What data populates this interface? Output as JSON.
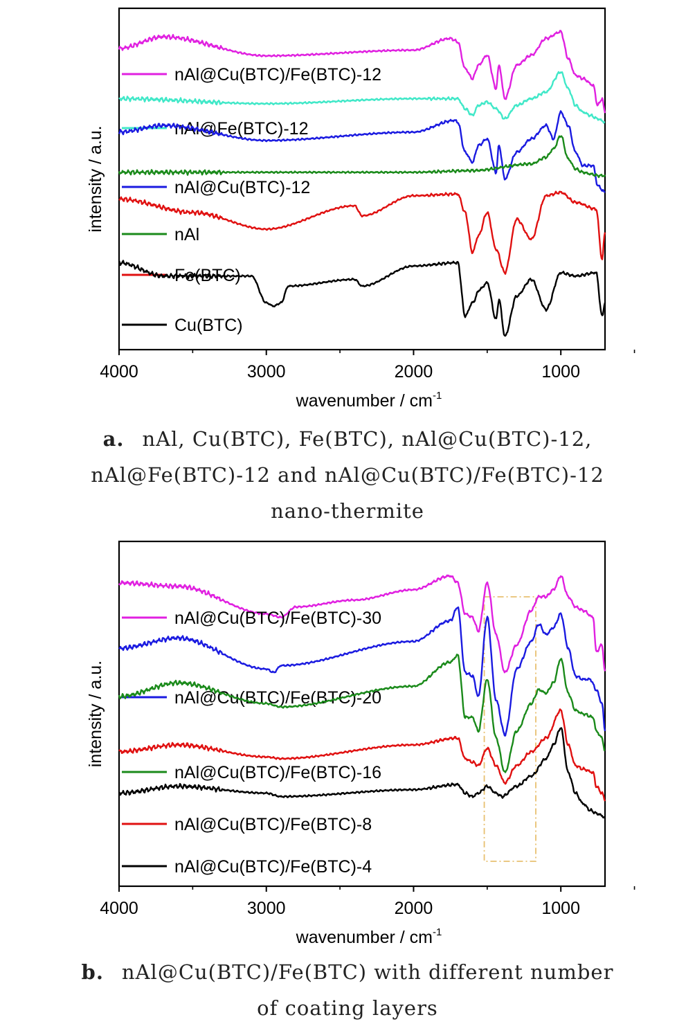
{
  "chart_data": [
    {
      "type": "line",
      "panel": "a",
      "xlabel": "wavenumber / cm",
      "xlabel_sup": "-1",
      "ylabel": "intensity / a.u.",
      "xlim": [
        4000,
        700
      ],
      "x_ticks": [
        4000,
        3000,
        2000,
        1000
      ],
      "y_ticks": [],
      "legend_placement": "inside-left",
      "series": [
        {
          "name": "nAl@Cu(BTC)/Fe(BTC)-12",
          "color": "#e020e0",
          "offset": 6.3,
          "profile": "mix",
          "x": [
            4000,
            3700,
            3000,
            2000,
            1750,
            1700,
            1650,
            1600,
            1560,
            1500,
            1440,
            1420,
            1380,
            1300,
            1200,
            1100,
            1000,
            950,
            900,
            850,
            780,
            750,
            720,
            700
          ],
          "y": [
            0.1,
            0.45,
            -0.12,
            0.05,
            0.4,
            0.3,
            -0.5,
            -0.8,
            -0.4,
            -0.1,
            -1.1,
            -0.4,
            -1.4,
            -0.4,
            -0.1,
            0.4,
            0.6,
            -0.2,
            -0.7,
            -0.8,
            -1.0,
            -1.6,
            -1.4,
            -1.8
          ]
        },
        {
          "name": "nAl@Fe(BTC)-12",
          "color": "#40e8c8",
          "offset": 4.9,
          "profile": "fe",
          "x": [
            4000,
            3000,
            2000,
            1700,
            1650,
            1600,
            1560,
            1500,
            1440,
            1380,
            1300,
            1200,
            1100,
            1000,
            950,
            900,
            850,
            800,
            750,
            700
          ],
          "y": [
            0.0,
            -0.15,
            0.0,
            0.0,
            -0.3,
            -0.5,
            -0.2,
            -0.1,
            -0.3,
            -0.6,
            -0.2,
            0.0,
            0.2,
            0.8,
            0.3,
            -0.2,
            -0.4,
            -0.5,
            -0.6,
            -0.7
          ]
        },
        {
          "name": "nAl@Cu(BTC)-12",
          "color": "#1a1ae0",
          "offset": 3.9,
          "profile": "cu",
          "x": [
            4000,
            3700,
            3000,
            2000,
            1720,
            1700,
            1650,
            1600,
            1560,
            1500,
            1440,
            1420,
            1380,
            1300,
            1200,
            1100,
            1050,
            1000,
            950,
            900,
            850,
            780,
            750,
            700
          ],
          "y": [
            0.0,
            0.2,
            -0.25,
            0.0,
            0.35,
            0.3,
            -0.6,
            -0.9,
            -0.4,
            -0.2,
            -1.2,
            -0.4,
            -1.4,
            -0.6,
            -0.2,
            0.2,
            -0.2,
            0.6,
            0.2,
            -0.6,
            -1.0,
            -1.0,
            -1.6,
            -1.8
          ]
        },
        {
          "name": "nAl",
          "color": "#1a8a1a",
          "offset": 2.7,
          "profile": "al",
          "x": [
            4000,
            3000,
            2000,
            1600,
            1200,
            1100,
            1050,
            1000,
            950,
            900,
            850,
            800,
            750,
            700
          ],
          "y": [
            0.0,
            0.0,
            0.0,
            0.05,
            0.25,
            0.45,
            0.7,
            1.1,
            0.4,
            0.1,
            0.0,
            -0.05,
            -0.1,
            -0.1
          ]
        },
        {
          "name": "Fe(BTC)",
          "color": "#e01010",
          "offset": 1.9,
          "profile": "fe",
          "x": [
            4000,
            3500,
            3000,
            2400,
            2350,
            2000,
            1700,
            1650,
            1600,
            1560,
            1500,
            1440,
            1380,
            1300,
            1200,
            1100,
            1000,
            900,
            760,
            720,
            700
          ],
          "y": [
            0.0,
            -0.4,
            -0.9,
            -0.2,
            -0.5,
            0.1,
            0.15,
            -0.4,
            -1.6,
            -1.1,
            -0.4,
            -1.5,
            -2.2,
            -0.6,
            -1.2,
            0.1,
            0.2,
            -0.1,
            -0.3,
            -1.8,
            -1.0
          ]
        },
        {
          "name": "Cu(BTC)",
          "color": "#000000",
          "offset": 0.0,
          "profile": "cu",
          "x": [
            4000,
            3700,
            3100,
            3000,
            2950,
            2900,
            2850,
            2400,
            2350,
            2000,
            1700,
            1650,
            1600,
            1550,
            1500,
            1440,
            1420,
            1380,
            1300,
            1200,
            1100,
            1000,
            900,
            760,
            720,
            700
          ],
          "y": [
            0.0,
            -0.4,
            -0.4,
            -1.2,
            -1.3,
            -1.2,
            -0.7,
            -0.5,
            -0.7,
            -0.1,
            0.0,
            -1.6,
            -1.2,
            -0.8,
            -0.6,
            -1.7,
            -1.1,
            -2.2,
            -1.0,
            -0.5,
            -1.4,
            -0.3,
            -0.4,
            -0.3,
            -1.6,
            -1.2
          ]
        }
      ]
    },
    {
      "type": "line",
      "panel": "b",
      "xlabel": "wavenumber / cm",
      "xlabel_sup": "-1",
      "ylabel": "intensity / a.u.",
      "xlim": [
        4000,
        700
      ],
      "x_ticks": [
        4000,
        3000,
        2000,
        1000
      ],
      "y_ticks": [],
      "legend_placement": "inside-left",
      "annotation": {
        "type": "dash-dot-rectangle",
        "x_range": [
          1520,
          1170
        ],
        "color": "#e8c070"
      },
      "series": [
        {
          "name": "nAl@Cu(BTC)/Fe(BTC)-30",
          "color": "#e020e0",
          "offset": 7.2,
          "profile": "mix",
          "x": [
            4000,
            3600,
            3000,
            2900,
            2800,
            2400,
            2000,
            1750,
            1700,
            1650,
            1600,
            1560,
            1500,
            1440,
            1380,
            1300,
            1200,
            1150,
            1100,
            1050,
            1000,
            950,
            900,
            850,
            780,
            760,
            720,
            700
          ],
          "y": [
            0.0,
            -0.1,
            -0.9,
            -1.0,
            -0.7,
            -0.5,
            -0.2,
            0.2,
            0.0,
            -0.9,
            -1.0,
            -1.4,
            0.0,
            -1.5,
            -2.6,
            -1.8,
            -0.8,
            -0.4,
            -0.4,
            -0.2,
            0.2,
            -0.4,
            -0.7,
            -0.8,
            -1.0,
            -2.0,
            -1.8,
            -2.6
          ]
        },
        {
          "name": "nAl@Cu(BTC)/Fe(BTC)-20",
          "color": "#1a1ae0",
          "offset": 5.3,
          "profile": "cu",
          "x": [
            4000,
            3600,
            3000,
            2950,
            2900,
            2000,
            1750,
            1700,
            1650,
            1600,
            1560,
            1500,
            1440,
            1380,
            1300,
            1200,
            1150,
            1100,
            1050,
            1000,
            950,
            900,
            850,
            800,
            760,
            720,
            700
          ],
          "y": [
            0.0,
            0.3,
            -0.6,
            -0.7,
            -0.5,
            0.2,
            0.8,
            1.2,
            -0.7,
            -0.8,
            -1.4,
            0.9,
            -1.5,
            -2.5,
            -0.6,
            0.2,
            0.7,
            0.4,
            0.6,
            1.0,
            0.0,
            -0.8,
            -0.9,
            -0.9,
            -1.2,
            -1.6,
            -2.4
          ]
        },
        {
          "name": "nAl@Cu(BTC)/Fe(BTC)-16",
          "color": "#1a8a1a",
          "offset": 3.9,
          "profile": "mix",
          "x": [
            4000,
            3600,
            3000,
            2900,
            2000,
            1750,
            1700,
            1650,
            1600,
            1560,
            1500,
            1440,
            1380,
            1300,
            1200,
            1150,
            1100,
            1050,
            1000,
            950,
            900,
            850,
            780,
            760,
            720,
            700
          ],
          "y": [
            0.0,
            0.4,
            -0.2,
            -0.3,
            0.3,
            1.0,
            1.2,
            -0.6,
            -0.6,
            -1.0,
            0.5,
            -1.2,
            -2.2,
            -1.0,
            -0.2,
            0.2,
            0.1,
            0.4,
            1.1,
            0.1,
            -0.4,
            -0.5,
            -0.6,
            -1.0,
            -1.2,
            -1.6
          ]
        },
        {
          "name": "nAl@Cu(BTC)/Fe(BTC)-8",
          "color": "#e01010",
          "offset": 2.3,
          "profile": "fe",
          "x": [
            4000,
            3600,
            3000,
            2900,
            2000,
            1700,
            1650,
            1600,
            1560,
            1500,
            1440,
            1380,
            1300,
            1200,
            1100,
            1000,
            950,
            900,
            850,
            780,
            760,
            720,
            700
          ],
          "y": [
            0.0,
            0.2,
            -0.15,
            -0.2,
            0.2,
            0.4,
            -0.2,
            -0.3,
            -0.4,
            0.1,
            -0.4,
            -0.9,
            -0.4,
            0.0,
            0.4,
            1.2,
            0.2,
            -0.4,
            -0.5,
            -0.6,
            -1.0,
            -1.2,
            -1.4
          ]
        },
        {
          "name": "nAl@Cu(BTC)/Fe(BTC)-4",
          "color": "#000000",
          "offset": 1.1,
          "profile": "al",
          "x": [
            4000,
            3600,
            3000,
            2900,
            2000,
            1700,
            1650,
            1600,
            1560,
            1500,
            1440,
            1400,
            1300,
            1200,
            1100,
            1050,
            1000,
            950,
            900,
            850,
            800,
            750,
            700
          ],
          "y": [
            0.0,
            0.2,
            0.0,
            -0.1,
            0.1,
            0.25,
            0.0,
            -0.1,
            0.0,
            0.2,
            0.0,
            -0.1,
            0.2,
            0.5,
            1.0,
            1.4,
            1.9,
            0.6,
            0.0,
            -0.3,
            -0.5,
            -0.6,
            -0.7
          ]
        }
      ]
    }
  ],
  "captions": [
    {
      "letter": "a.",
      "lines": [
        "nAl, Cu(BTC), Fe(BTC), nAl@Cu(BTC)-12,",
        "nAl@Fe(BTC)-12 and nAl@Cu(BTC)/Fe(BTC)-12",
        "nano-thermite"
      ]
    },
    {
      "letter": "b.",
      "lines": [
        "nAl@Cu(BTC)/Fe(BTC) with different number",
        "of coating layers"
      ]
    }
  ]
}
